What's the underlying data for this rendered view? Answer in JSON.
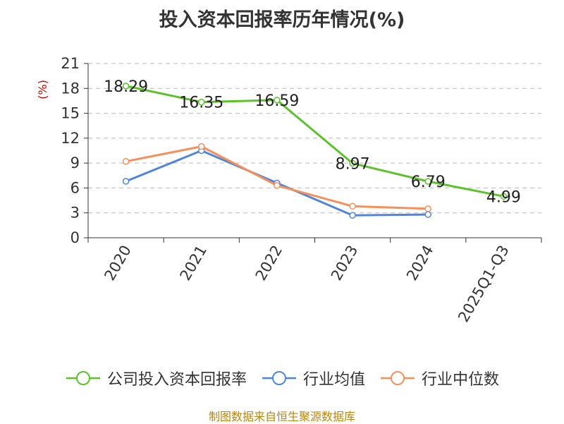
{
  "chart_data": {
    "type": "line",
    "title": "投入资本回报率历年情况(%)",
    "ylabel": "(%)",
    "xlabel": "",
    "categories": [
      "2020",
      "2021",
      "2022",
      "2023",
      "2024",
      "2025Q1-Q3"
    ],
    "ylim": [
      0,
      21
    ],
    "yticks": [
      0,
      3,
      6,
      9,
      12,
      15,
      18,
      21
    ],
    "grid": true,
    "legend_position": "bottom",
    "series": [
      {
        "name": "公司投入资本回报率",
        "color": "#5cc22a",
        "values": [
          18.29,
          16.35,
          16.59,
          8.97,
          6.79,
          4.99
        ],
        "labels": [
          "18.29",
          "16.35",
          "16.59",
          "8.97",
          "6.79",
          "4.99"
        ]
      },
      {
        "name": "行业均值",
        "color": "#4f86d9",
        "values": [
          6.8,
          10.5,
          6.6,
          2.7,
          2.8,
          null
        ]
      },
      {
        "name": "行业中位数",
        "color": "#f5905c",
        "values": [
          9.2,
          11.0,
          6.3,
          3.8,
          3.5,
          null
        ]
      }
    ]
  },
  "source": "制图数据来自恒生聚源数据库"
}
